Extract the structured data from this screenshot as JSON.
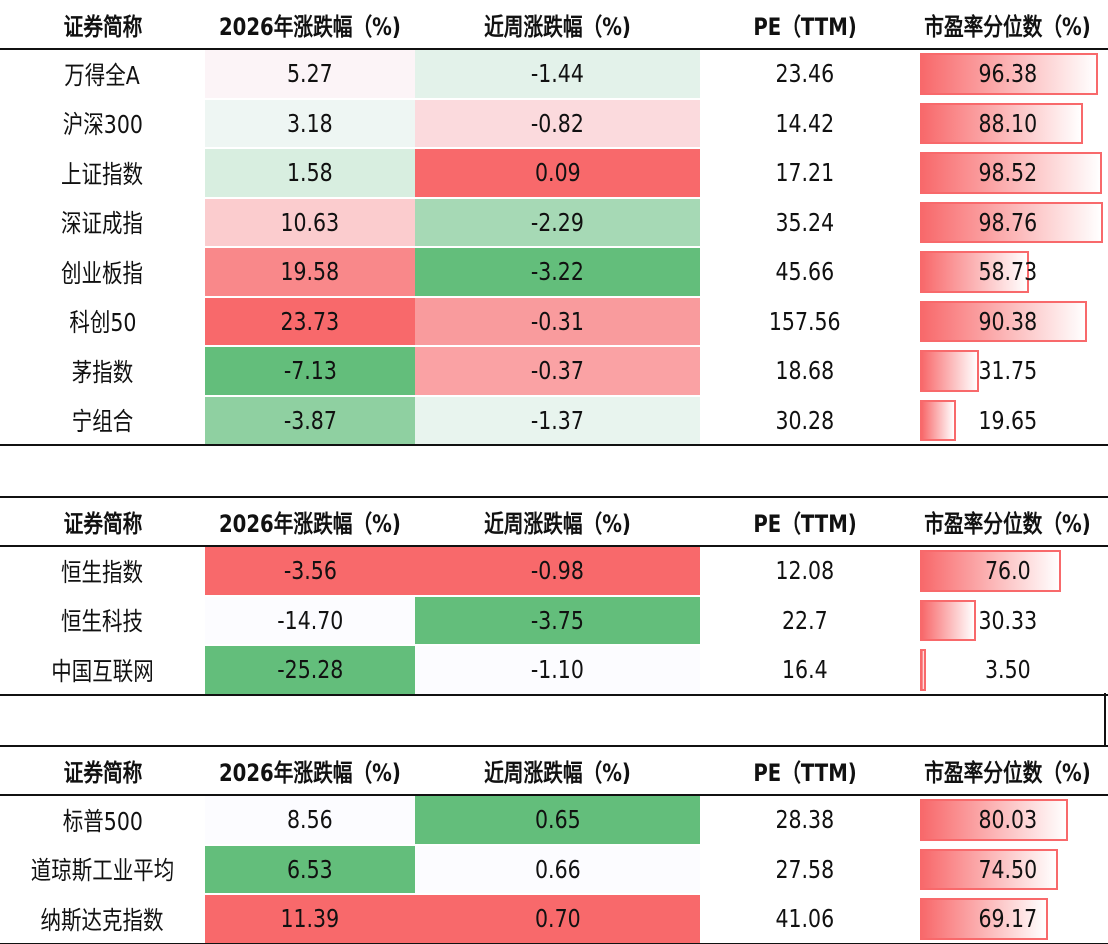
{
  "tables": [
    {
      "columns": [
        "证券简称",
        "2026年涨跌幅（%)",
        "近周涨跌幅（%)",
        "PE（TTM)",
        "市盈率分位数（%)"
      ],
      "rows": [
        [
          "万得全A",
          "5.27",
          "-1.44",
          "23.46",
          "96.38"
        ],
        [
          "沪深300",
          "3.18",
          "-0.82",
          "14.42",
          "88.10"
        ],
        [
          "上证指数",
          "1.58",
          "0.09",
          "17.21",
          "98.52"
        ],
        [
          "深证成指",
          "10.63",
          "-2.29",
          "35.24",
          "98.76"
        ],
        [
          "创业板指",
          "19.58",
          "-3.22",
          "45.66",
          "58.73"
        ],
        [
          "科创50",
          "23.73",
          "-0.31",
          "157.56",
          "90.38"
        ],
        [
          "茅指数",
          "-7.13",
          "-0.37",
          "18.68",
          "31.75"
        ],
        [
          "宁组合",
          "-3.87",
          "-1.37",
          "30.28",
          "19.65"
        ]
      ]
    },
    {
      "columns": [
        "证券简称",
        "2026年涨跌幅（%)",
        "近周涨跌幅（%)",
        "PE（TTM)",
        "市盈率分位数（%)"
      ],
      "rows": [
        [
          "恒生指数",
          "-3.56",
          "-0.98",
          "12.08",
          "76.0"
        ],
        [
          "恒生科技",
          "-14.70",
          "-3.75",
          "22.7",
          "30.33"
        ],
        [
          "中国互联网",
          "-25.28",
          "-1.10",
          "16.4",
          "3.50"
        ]
      ]
    },
    {
      "columns": [
        "证券简称",
        "2026年涨跌幅（%)",
        "近周涨跌幅（%)",
        "PE（TTM)",
        "市盈率分位数（%)"
      ],
      "rows": [
        [
          "标普500",
          "8.56",
          "0.65",
          "28.38",
          "80.03"
        ],
        [
          "道琼斯工业平均",
          "6.53",
          "0.66",
          "27.58",
          "74.50"
        ],
        [
          "纳斯达克指数",
          "11.39",
          "0.70",
          "41.06",
          "69.17"
        ]
      ]
    }
  ]
}
